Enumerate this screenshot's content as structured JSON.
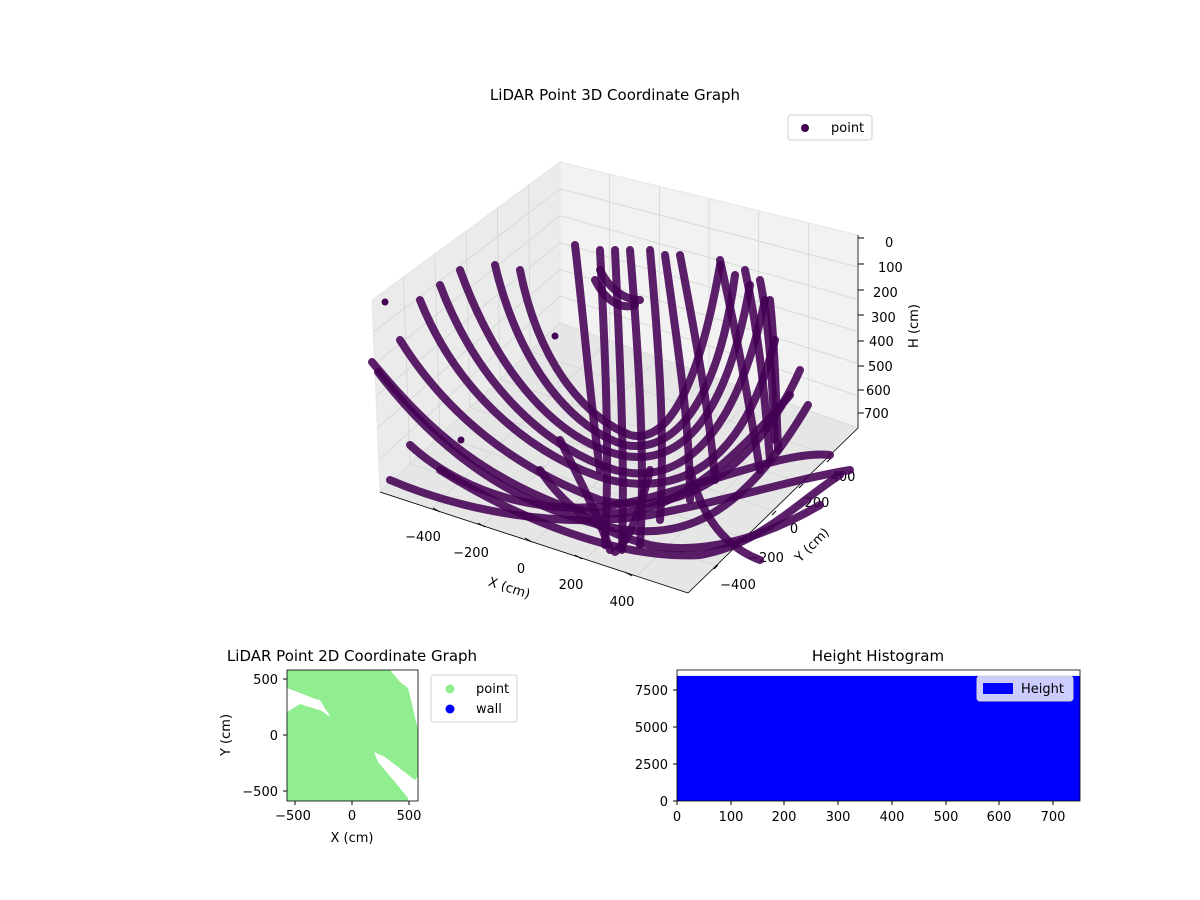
{
  "chart_data": [
    {
      "type": "scatter",
      "title": "LiDAR Point 3D Coordinate Graph",
      "xlabel": "X (cm)",
      "ylabel": "Y (cm)",
      "zlabel": "H (cm)",
      "x_ticks": [
        "−400",
        "−200",
        "0",
        "200",
        "400"
      ],
      "y_ticks": [
        "−400",
        "−200",
        "0",
        "200",
        "400"
      ],
      "z_ticks": [
        "0",
        "100",
        "200",
        "300",
        "400",
        "500",
        "600",
        "700"
      ],
      "xlim": [
        -560,
        560
      ],
      "ylim": [
        -560,
        560
      ],
      "zlim": [
        0,
        750
      ],
      "z_inverted": true,
      "grid": true,
      "legend": {
        "position": "top-right",
        "entries": [
          {
            "label": "point",
            "color": "#440154"
          }
        ]
      },
      "series": [
        {
          "name": "point",
          "color": "#440154"
        }
      ]
    },
    {
      "type": "scatter",
      "title": "LiDAR Point 2D Coordinate Graph",
      "xlabel": "X (cm)",
      "ylabel": "Y (cm)",
      "x_ticks": [
        "−500",
        "0",
        "500"
      ],
      "y_ticks": [
        "500",
        "0",
        "−500"
      ],
      "xlim": [
        -580,
        580
      ],
      "ylim": [
        -580,
        580
      ],
      "legend": {
        "position": "outside-right",
        "entries": [
          {
            "label": "point",
            "color": "#90ee90"
          },
          {
            "label": "wall",
            "color": "#0000ff"
          }
        ]
      },
      "series": [
        {
          "name": "point",
          "color": "#90ee90"
        },
        {
          "name": "wall",
          "color": "#0000ff"
        }
      ]
    },
    {
      "type": "bar",
      "title": "Height Histogram",
      "x_ticks": [
        "0",
        "100",
        "200",
        "300",
        "400",
        "500",
        "600",
        "700"
      ],
      "y_ticks": [
        "0",
        "2500",
        "5000",
        "7500"
      ],
      "xlim": [
        0,
        750
      ],
      "ylim": [
        0,
        8900
      ],
      "bin_count": 8500,
      "legend": {
        "position": "top-right",
        "entries": [
          {
            "label": "Height",
            "color": "#0000ff"
          }
        ]
      },
      "series": [
        {
          "name": "Height",
          "color": "#0000ff"
        }
      ]
    }
  ]
}
